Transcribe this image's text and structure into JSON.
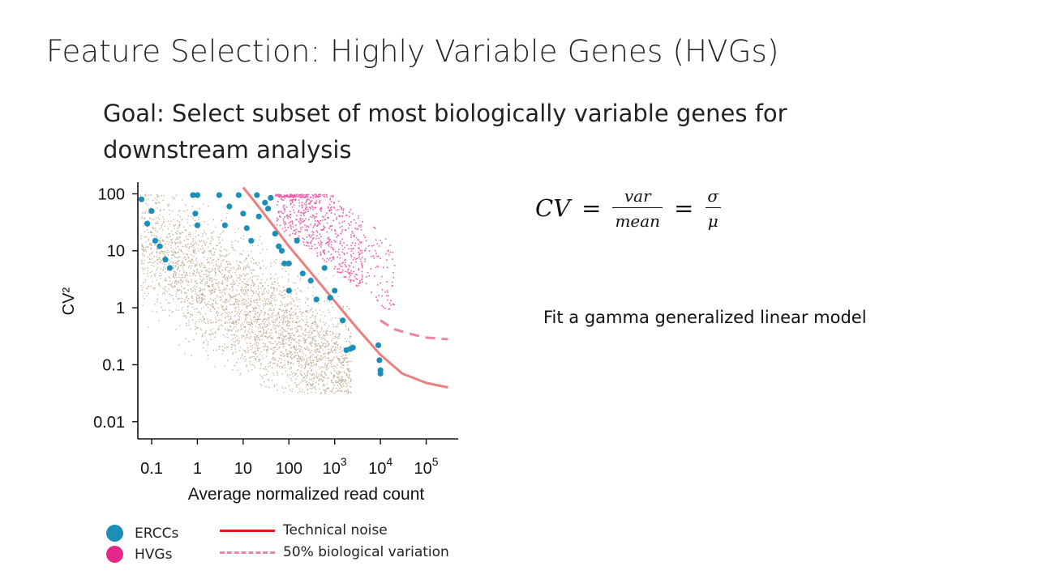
{
  "slide": {
    "title": "Feature Selection: Highly Variable Genes (HVGs)",
    "goal": "Goal: Select subset of most biologically variable genes for downstream analysis",
    "formula": {
      "lhs": "CV",
      "eq": "=",
      "frac1_num": "var",
      "frac1_den": "mean",
      "frac2_num": "σ",
      "frac2_den": "μ"
    },
    "fit_text": "Fit a gamma generalized linear model"
  },
  "legend": {
    "ercc": "ERCCs",
    "hvg": "HVGs",
    "technical": "Technical noise",
    "biological": "50% biological variation"
  },
  "colors": {
    "background_genes": "#8b6a36",
    "hvg": "#e2298b",
    "ercc": "#1b8fb8",
    "technical_noise": "#e31a1c",
    "technical_curve": "#ec8080",
    "biological_curve": "#ec85a4"
  },
  "chart_data": {
    "type": "scatter",
    "xlabel": "Average normalized read count",
    "ylabel": "CV²",
    "x_scale": "log",
    "y_scale": "log",
    "xlim": [
      0.05,
      500000
    ],
    "ylim": [
      0.005,
      150
    ],
    "x_ticks": [
      {
        "value": 0.1,
        "label": "0.1"
      },
      {
        "value": 1,
        "label": "1"
      },
      {
        "value": 10,
        "label": "10"
      },
      {
        "value": 100,
        "label": "100"
      },
      {
        "value": 1000,
        "label": "10",
        "sup": "3"
      },
      {
        "value": 10000,
        "label": "10",
        "sup": "4"
      },
      {
        "value": 100000,
        "label": "10",
        "sup": "5"
      }
    ],
    "y_ticks": [
      {
        "value": 100,
        "label": "100"
      },
      {
        "value": 10,
        "label": "10"
      },
      {
        "value": 1,
        "label": "1"
      },
      {
        "value": 0.1,
        "label": "0.1"
      },
      {
        "value": 0.01,
        "label": "0.01"
      }
    ],
    "series": [
      {
        "name": "ERCCs",
        "marker": "circle",
        "points": [
          [
            0.06,
            80
          ],
          [
            0.08,
            30
          ],
          [
            0.1,
            50
          ],
          [
            0.12,
            15
          ],
          [
            0.15,
            12
          ],
          [
            0.2,
            7
          ],
          [
            0.25,
            5
          ],
          [
            0.8,
            95
          ],
          [
            1,
            95
          ],
          [
            1,
            28
          ],
          [
            0.9,
            45
          ],
          [
            3,
            95
          ],
          [
            4,
            28
          ],
          [
            5,
            60
          ],
          [
            8,
            95
          ],
          [
            10,
            45
          ],
          [
            12,
            25
          ],
          [
            15,
            15
          ],
          [
            20,
            95
          ],
          [
            22,
            40
          ],
          [
            30,
            70
          ],
          [
            35,
            55
          ],
          [
            40,
            85
          ],
          [
            50,
            20
          ],
          [
            60,
            12
          ],
          [
            70,
            10
          ],
          [
            80,
            6
          ],
          [
            100,
            6
          ],
          [
            100,
            2
          ],
          [
            150,
            15
          ],
          [
            200,
            4
          ],
          [
            300,
            3
          ],
          [
            400,
            1.4
          ],
          [
            600,
            5
          ],
          [
            800,
            1.5
          ],
          [
            1000,
            2
          ],
          [
            1500,
            0.6
          ],
          [
            1800,
            0.18
          ],
          [
            2200,
            0.19
          ],
          [
            2500,
            0.2
          ],
          [
            9000,
            0.22
          ],
          [
            9500,
            0.12
          ],
          [
            10000,
            0.08
          ],
          [
            10000,
            0.07
          ]
        ]
      }
    ],
    "curves": [
      {
        "name": "Technical noise",
        "style": "solid",
        "points": [
          [
            10,
            130
          ],
          [
            20,
            65
          ],
          [
            50,
            25
          ],
          [
            100,
            12
          ],
          [
            300,
            4.2
          ],
          [
            1000,
            1.3
          ],
          [
            3000,
            0.45
          ],
          [
            10000,
            0.15
          ],
          [
            30000,
            0.07
          ],
          [
            100000,
            0.048
          ],
          [
            300000,
            0.04
          ]
        ]
      },
      {
        "name": "50% biological variation",
        "style": "dashed",
        "points": [
          [
            10000,
            0.6
          ],
          [
            20000,
            0.42
          ],
          [
            50000,
            0.34
          ],
          [
            100000,
            0.3
          ],
          [
            300000,
            0.28
          ]
        ]
      }
    ]
  }
}
